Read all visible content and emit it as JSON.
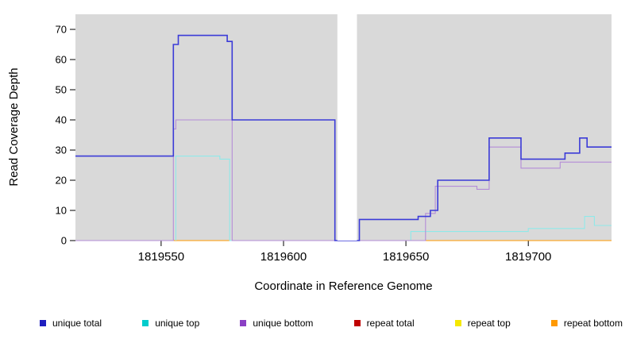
{
  "chart_data": {
    "type": "line",
    "subtype": "step-coverage",
    "title": "",
    "xlabel": "Coordinate in Reference Genome",
    "ylabel": "Read Coverage Depth",
    "xlim": [
      1819515,
      1819734
    ],
    "ylim": [
      0,
      75
    ],
    "x_ticks": [
      1819550,
      1819600,
      1819650,
      1819700
    ],
    "y_ticks": [
      0,
      10,
      20,
      30,
      40,
      50,
      60,
      70
    ],
    "plot_bg": "#d9d9d9",
    "page_bg": "#ffffff",
    "grid": false,
    "gap_region": [
      1819622,
      1819630
    ],
    "legend_position": "bottom",
    "draw_order": [
      4,
      3,
      5,
      1,
      2,
      0
    ],
    "series": [
      {
        "name": "unique total",
        "color": "#3b3bd8",
        "legend_color": "#1f1fbf",
        "lw": 1.6,
        "points": [
          [
            1819515,
            28
          ],
          [
            1819555,
            28
          ],
          [
            1819555,
            65
          ],
          [
            1819557,
            65
          ],
          [
            1819557,
            68
          ],
          [
            1819577,
            68
          ],
          [
            1819577,
            66
          ],
          [
            1819579,
            66
          ],
          [
            1819579,
            40
          ],
          [
            1819621,
            40
          ],
          [
            1819621,
            0
          ],
          [
            1819631,
            0
          ],
          [
            1819631,
            7
          ],
          [
            1819655,
            7
          ],
          [
            1819655,
            8
          ],
          [
            1819660,
            8
          ],
          [
            1819660,
            10
          ],
          [
            1819663,
            10
          ],
          [
            1819663,
            20
          ],
          [
            1819684,
            20
          ],
          [
            1819684,
            34
          ],
          [
            1819697,
            34
          ],
          [
            1819697,
            27
          ],
          [
            1819715,
            27
          ],
          [
            1819715,
            29
          ],
          [
            1819721,
            29
          ],
          [
            1819721,
            34
          ],
          [
            1819724,
            34
          ],
          [
            1819724,
            31
          ],
          [
            1819734,
            31
          ]
        ]
      },
      {
        "name": "unique top",
        "color": "#8fe9e9",
        "legend_color": "#00cccc",
        "lw": 1.1,
        "points": [
          [
            1819556,
            0
          ],
          [
            1819556,
            28
          ],
          [
            1819574,
            28
          ],
          [
            1819574,
            27
          ],
          [
            1819578,
            27
          ],
          [
            1819578,
            0
          ],
          [
            1819652,
            0
          ],
          [
            1819652,
            3
          ],
          [
            1819700,
            3
          ],
          [
            1819700,
            4
          ],
          [
            1819723,
            4
          ],
          [
            1819723,
            8
          ],
          [
            1819727,
            8
          ],
          [
            1819727,
            5
          ],
          [
            1819734,
            5
          ]
        ]
      },
      {
        "name": "unique bottom",
        "color": "#b48cd8",
        "legend_color": "#8a3fc4",
        "lw": 1.1,
        "points": [
          [
            1819515,
            0
          ],
          [
            1819555,
            0
          ],
          [
            1819555,
            37
          ],
          [
            1819556,
            37
          ],
          [
            1819556,
            40
          ],
          [
            1819579,
            40
          ],
          [
            1819579,
            0
          ],
          [
            1819658,
            0
          ],
          [
            1819658,
            9
          ],
          [
            1819662,
            9
          ],
          [
            1819662,
            18
          ],
          [
            1819679,
            18
          ],
          [
            1819679,
            17
          ],
          [
            1819684,
            17
          ],
          [
            1819684,
            31
          ],
          [
            1819697,
            31
          ],
          [
            1819697,
            24
          ],
          [
            1819713,
            24
          ],
          [
            1819713,
            26
          ],
          [
            1819734,
            26
          ]
        ]
      },
      {
        "name": "repeat total",
        "color": "#b03030",
        "legend_color": "#c00000",
        "lw": 1.1,
        "points": [
          [
            1819515,
            0
          ],
          [
            1819734,
            0
          ]
        ]
      },
      {
        "name": "repeat top",
        "color": "#f0e000",
        "legend_color": "#f5e800",
        "lw": 1.1,
        "points": [
          [
            1819515,
            0
          ],
          [
            1819734,
            0
          ]
        ]
      },
      {
        "name": "repeat bottom",
        "color": "#ff9900",
        "legend_color": "#ff9900",
        "lw": 1.1,
        "points": [
          [
            1819555,
            0
          ],
          [
            1819734,
            0
          ]
        ]
      }
    ]
  }
}
